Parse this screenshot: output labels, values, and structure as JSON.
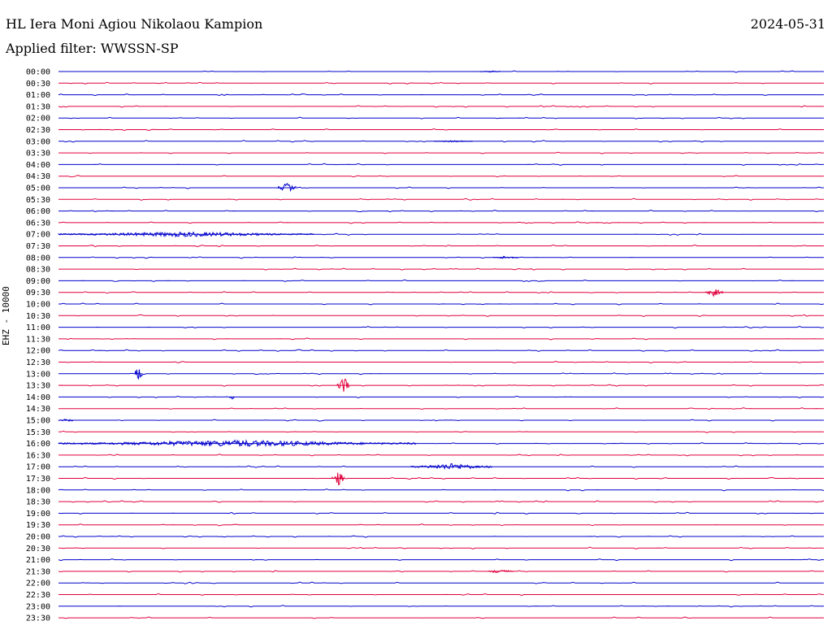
{
  "header": {
    "station": "HL Iera Moni Agiou Nikolaou Kampion",
    "filter": "Applied filter: WWSSN-SP",
    "date": "2024-05-31"
  },
  "chart_data": {
    "type": "line",
    "title": "HL Iera Moni Agiou Nikolaou Kampion",
    "subtitle": "Applied filter: WWSSN-SP",
    "date": "2024-05-31",
    "ylabel": "EHZ - 10000",
    "xlabel": "",
    "row_labels": [
      "00:00",
      "00:30",
      "01:00",
      "01:30",
      "02:00",
      "02:30",
      "03:00",
      "03:30",
      "04:00",
      "04:30",
      "05:00",
      "05:30",
      "06:00",
      "06:30",
      "07:00",
      "07:30",
      "08:00",
      "08:30",
      "09:00",
      "09:30",
      "10:00",
      "10:30",
      "11:00",
      "11:30",
      "12:00",
      "12:30",
      "13:00",
      "13:30",
      "14:00",
      "14:30",
      "15:00",
      "15:30",
      "16:00",
      "16:30",
      "17:00",
      "17:30",
      "18:00",
      "18:30",
      "19:00",
      "19:30",
      "20:00",
      "20:30",
      "21:00",
      "21:30",
      "22:00",
      "22:30",
      "23:00",
      "23:30"
    ],
    "row_minutes": 30,
    "series_colors": [
      "#0000cc",
      "#e0003c"
    ],
    "events": [
      {
        "row": "00:00",
        "start_min": 16.5,
        "end_min": 17.3,
        "amp": 1
      },
      {
        "row": "03:00",
        "start_min": 14.7,
        "end_min": 16.2,
        "amp": 1
      },
      {
        "row": "05:00",
        "start_min": 8.6,
        "end_min": 9.3,
        "amp": 6
      },
      {
        "row": "07:00",
        "start_min": 0.0,
        "end_min": 10.0,
        "amp": 3
      },
      {
        "row": "08:00",
        "start_min": 17.0,
        "end_min": 18.0,
        "amp": 2
      },
      {
        "row": "09:30",
        "start_min": 25.3,
        "end_min": 26.0,
        "amp": 5
      },
      {
        "row": "13:00",
        "start_min": 3.0,
        "end_min": 3.3,
        "amp": 14
      },
      {
        "row": "13:30",
        "start_min": 10.9,
        "end_min": 11.4,
        "amp": 12
      },
      {
        "row": "14:00",
        "start_min": 6.7,
        "end_min": 6.9,
        "amp": 3
      },
      {
        "row": "15:00",
        "start_min": 0.0,
        "end_min": 0.6,
        "amp": 3
      },
      {
        "row": "16:00",
        "start_min": 0.0,
        "end_min": 14.0,
        "amp": 4
      },
      {
        "row": "17:00",
        "start_min": 13.8,
        "end_min": 17.0,
        "amp": 4
      },
      {
        "row": "17:30",
        "start_min": 10.7,
        "end_min": 11.2,
        "amp": 10
      },
      {
        "row": "21:30",
        "start_min": 16.8,
        "end_min": 17.8,
        "amp": 3
      }
    ]
  }
}
